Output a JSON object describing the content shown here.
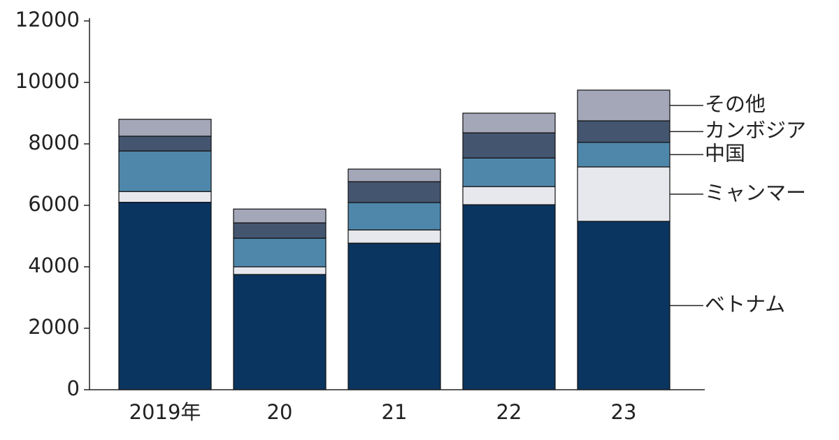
{
  "chart_data": {
    "type": "stacked_bar",
    "categories": [
      "2019年",
      "20",
      "21",
      "22",
      "23"
    ],
    "series": [
      {
        "name": "ベトナム",
        "color": "#0a3560",
        "values": [
          6100,
          3750,
          4770,
          6020,
          5480
        ]
      },
      {
        "name": "ミャンマー",
        "color": "#e6e8ee",
        "values": [
          350,
          250,
          430,
          590,
          1770
        ]
      },
      {
        "name": "中国",
        "color": "#4f87ab",
        "values": [
          1320,
          930,
          890,
          930,
          800
        ]
      },
      {
        "name": "カンボジア",
        "color": "#44556f",
        "values": [
          480,
          500,
          680,
          820,
          700
        ]
      },
      {
        "name": "その他",
        "color": "#a3a7b8",
        "values": [
          550,
          450,
          410,
          640,
          1000
        ]
      }
    ],
    "ylim": [
      0,
      12000
    ],
    "yticks": [
      0,
      2000,
      4000,
      6000,
      8000,
      10000,
      12000
    ]
  }
}
